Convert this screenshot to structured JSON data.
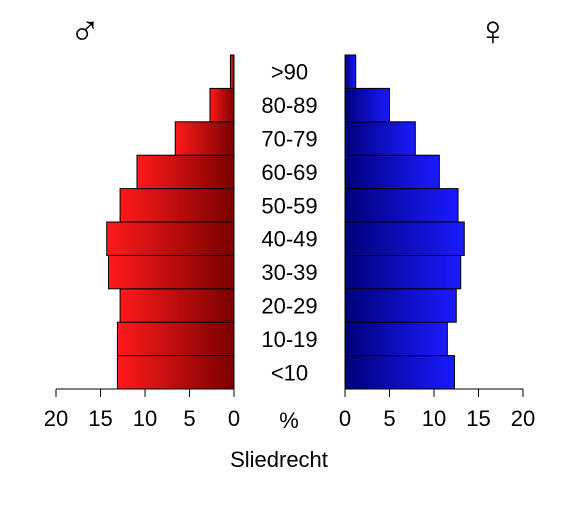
{
  "chart_data": {
    "type": "bar",
    "orientation": "horizontal",
    "title": "Sliedrecht",
    "unit_label": "%",
    "categories": [
      "<10",
      "10-19",
      "20-29",
      "30-39",
      "40-49",
      "50-59",
      "60-69",
      "70-79",
      "80-89",
      ">90"
    ],
    "series": [
      {
        "name": "♂",
        "values": [
          13.1,
          13.1,
          12.8,
          14.1,
          14.3,
          12.8,
          10.9,
          6.6,
          2.7,
          0.4
        ]
      },
      {
        "name": "♀",
        "values": [
          12.3,
          11.5,
          12.5,
          13.0,
          13.4,
          12.7,
          10.6,
          7.9,
          5.0,
          1.2
        ]
      }
    ],
    "xlim": [
      0,
      20
    ],
    "xticks": [
      "20",
      "15",
      "10",
      "5",
      "0"
    ],
    "xticks_right": [
      "0",
      "5",
      "10",
      "15",
      "20"
    ],
    "colors": {
      "male_light": "#ff1a1a",
      "male_dark": "#7a0000",
      "female_light": "#1a1aff",
      "female_dark": "#00007a"
    }
  }
}
